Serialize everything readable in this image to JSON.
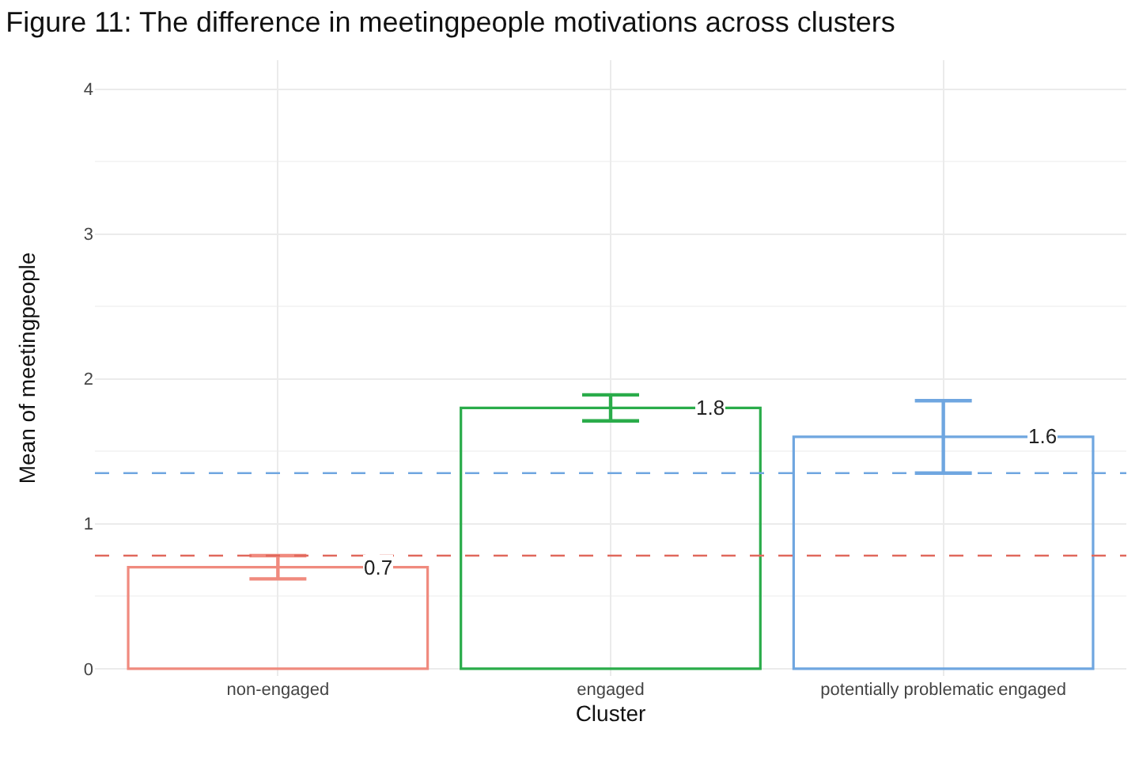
{
  "chart_data": {
    "type": "bar",
    "title": "Figure 11: The difference in meetingpeople motivations across clusters",
    "xlabel": "Cluster",
    "ylabel": "Mean of meetingpeople",
    "categories": [
      "non-engaged",
      "engaged",
      "potentially problematic engaged"
    ],
    "values": [
      0.7,
      1.8,
      1.6
    ],
    "colors": [
      "#f08a7e",
      "#2aac4a",
      "#6fa6e0"
    ],
    "errors": [
      [
        0.62,
        0.78
      ],
      [
        1.71,
        1.89
      ],
      [
        1.35,
        1.85
      ]
    ],
    "data_labels": true,
    "ylim": [
      -0.05,
      4.2
    ],
    "yticks": [
      0,
      1,
      2,
      3,
      4
    ],
    "ref_lines": [
      {
        "axis": "y",
        "value": 0.78,
        "color": "#e0685c",
        "line_style": "dashed"
      },
      {
        "axis": "y",
        "value": 1.35,
        "color": "#6fa6e0",
        "line_style": "dashed"
      }
    ],
    "grid": true,
    "legend": false
  }
}
